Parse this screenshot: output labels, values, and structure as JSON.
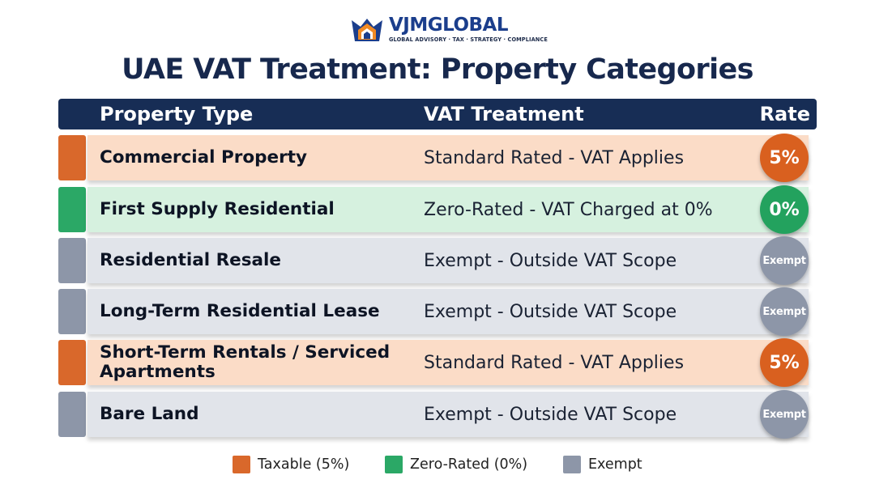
{
  "brand": {
    "name_part1": "VJMGL",
    "name_part2": "OBAL",
    "tagline": "GLOBAL ADVISORY · TAX · STRATEGY · COMPLIANCE"
  },
  "title": "UAE VAT Treatment: Property Categories",
  "table": {
    "headers": {
      "type": "Property Type",
      "vat": "VAT Treatment",
      "rate": "Rate"
    },
    "rows": [
      {
        "category": "taxable",
        "type_line1": "Commercial Property",
        "type_line2": "",
        "vat": "Standard Rated - VAT Applies",
        "rate": "5%"
      },
      {
        "category": "zero",
        "type_line1": "First Supply Residential",
        "type_line2": "",
        "vat": "Zero-Rated - VAT Charged at 0%",
        "rate": "0%"
      },
      {
        "category": "exempt",
        "type_line1": "Residential Resale",
        "type_line2": "",
        "vat": "Exempt - Outside VAT Scope",
        "rate": "Exempt"
      },
      {
        "category": "exempt",
        "type_line1": "Long-Term Residential Lease",
        "type_line2": "",
        "vat": "Exempt - Outside VAT Scope",
        "rate": "Exempt"
      },
      {
        "category": "taxable",
        "type_line1": "Short-Term Rentals / Serviced",
        "type_line2": "Apartments",
        "vat": "Standard Rated - VAT Applies",
        "rate": "5%"
      },
      {
        "category": "exempt",
        "type_line1": "Bare Land",
        "type_line2": "",
        "vat": "Exempt - Outside VAT Scope",
        "rate": "Exempt"
      }
    ]
  },
  "legend": [
    {
      "category": "taxable",
      "label": "Taxable (5%)"
    },
    {
      "category": "zero",
      "label": "Zero-Rated (0%)"
    },
    {
      "category": "exempt",
      "label": "Exempt"
    }
  ],
  "colors": {
    "navy": "#172d55",
    "taxable_tab": "#d9682b",
    "taxable_band": "#fbdcc7",
    "taxable_badge": "#d9601f",
    "zero_tab": "#2ba866",
    "zero_band": "#d6f1df",
    "zero_badge": "#23a25e",
    "exempt_tab": "#8d96a8",
    "exempt_band": "#e1e4ea",
    "exempt_badge": "#8d96a8"
  }
}
